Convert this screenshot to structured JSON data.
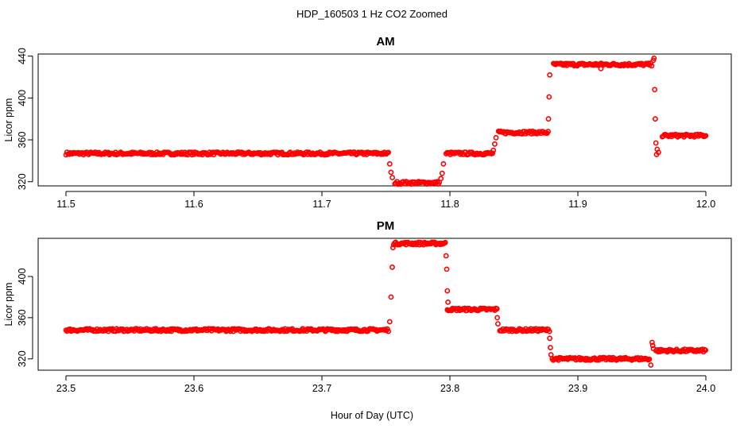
{
  "figure_title": "HDP_160503  1 Hz CO2 Zoomed",
  "xlabel": "Hour of Day (UTC)",
  "colors": {
    "points": "#ff0000"
  },
  "chart_data": [
    {
      "type": "scatter",
      "title": "AM",
      "ylabel": "Licor ppm",
      "xlim": [
        11.5,
        12.0
      ],
      "ylim": [
        316,
        442
      ],
      "xticks": [
        "11.5",
        "11.6",
        "11.7",
        "11.8",
        "11.9",
        "12.0"
      ],
      "yticks": [
        "320",
        "360",
        "400",
        "440"
      ],
      "segments": [
        {
          "x_start": 11.5,
          "x_end": 11.752,
          "y": 347
        },
        {
          "x_start": 11.757,
          "x_end": 11.792,
          "y": 319
        },
        {
          "x_start": 11.797,
          "x_end": 11.834,
          "y": 347
        },
        {
          "x_start": 11.838,
          "x_end": 11.877,
          "y": 367
        },
        {
          "x_start": 11.881,
          "x_end": 11.958,
          "y": 432
        },
        {
          "x_start": 11.966,
          "x_end": 12.0,
          "y": 364
        }
      ],
      "transition_points": [
        {
          "x": 11.753,
          "y": 337
        },
        {
          "x": 11.754,
          "y": 329
        },
        {
          "x": 11.755,
          "y": 324
        },
        {
          "x": 11.793,
          "y": 323
        },
        {
          "x": 11.794,
          "y": 328
        },
        {
          "x": 11.795,
          "y": 337
        },
        {
          "x": 11.834,
          "y": 350
        },
        {
          "x": 11.835,
          "y": 356
        },
        {
          "x": 11.836,
          "y": 362
        },
        {
          "x": 11.877,
          "y": 380
        },
        {
          "x": 11.8775,
          "y": 401
        },
        {
          "x": 11.878,
          "y": 422
        },
        {
          "x": 11.918,
          "y": 428
        },
        {
          "x": 11.959,
          "y": 436
        },
        {
          "x": 11.9595,
          "y": 438
        },
        {
          "x": 11.96,
          "y": 408
        },
        {
          "x": 11.9605,
          "y": 380
        },
        {
          "x": 11.961,
          "y": 357
        },
        {
          "x": 11.962,
          "y": 351
        },
        {
          "x": 11.9615,
          "y": 346
        },
        {
          "x": 11.963,
          "y": 348
        }
      ]
    },
    {
      "type": "scatter",
      "title": "PM",
      "ylabel": "Licor ppm",
      "xlim": [
        23.5,
        24.0
      ],
      "ylim": [
        309,
        437
      ],
      "xticks": [
        "23.5",
        "23.6",
        "23.7",
        "23.8",
        "23.9",
        "24.0"
      ],
      "yticks": [
        "320",
        "360",
        "400"
      ],
      "segments": [
        {
          "x_start": 23.5,
          "x_end": 23.752,
          "y": 348
        },
        {
          "x_start": 23.756,
          "x_end": 23.797,
          "y": 432
        },
        {
          "x_start": 23.798,
          "x_end": 23.837,
          "y": 368
        },
        {
          "x_start": 23.839,
          "x_end": 23.878,
          "y": 348
        },
        {
          "x_start": 23.88,
          "x_end": 23.956,
          "y": 320
        },
        {
          "x_start": 23.961,
          "x_end": 24.0,
          "y": 328
        }
      ],
      "transition_points": [
        {
          "x": 23.753,
          "y": 356
        },
        {
          "x": 23.754,
          "y": 380
        },
        {
          "x": 23.755,
          "y": 409
        },
        {
          "x": 23.7555,
          "y": 428
        },
        {
          "x": 23.797,
          "y": 420
        },
        {
          "x": 23.7975,
          "y": 407
        },
        {
          "x": 23.798,
          "y": 386
        },
        {
          "x": 23.7985,
          "y": 375
        },
        {
          "x": 23.837,
          "y": 360
        },
        {
          "x": 23.8375,
          "y": 354
        },
        {
          "x": 23.878,
          "y": 340
        },
        {
          "x": 23.8785,
          "y": 331
        },
        {
          "x": 23.879,
          "y": 324
        },
        {
          "x": 23.957,
          "y": 314
        },
        {
          "x": 23.958,
          "y": 336
        },
        {
          "x": 23.9585,
          "y": 333
        },
        {
          "x": 23.959,
          "y": 330
        }
      ]
    }
  ]
}
